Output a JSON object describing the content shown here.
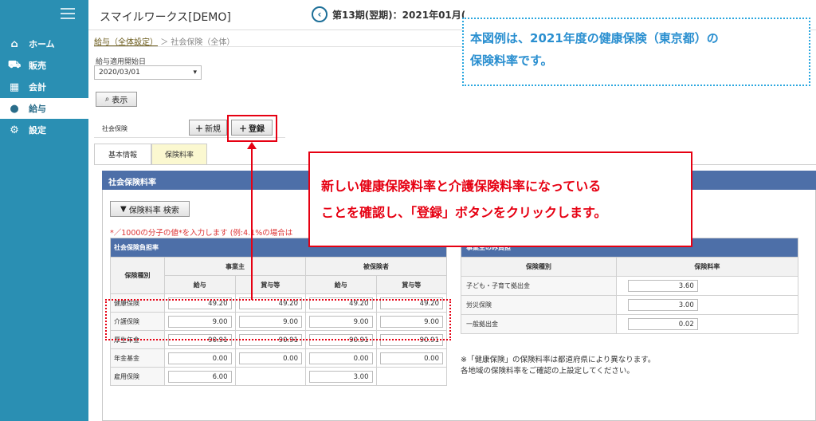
{
  "sidebar": {
    "items": [
      {
        "label": "ホーム",
        "icon": "home-icon"
      },
      {
        "label": "販売",
        "icon": "cart-icon"
      },
      {
        "label": "会計",
        "icon": "calculator-icon"
      },
      {
        "label": "給与",
        "icon": "money-bag-icon"
      },
      {
        "label": "設定",
        "icon": "gear-icon"
      }
    ],
    "active_index": 3
  },
  "header": {
    "app_title": "スマイルワークス[DEMO]",
    "period": "第13期(翌期)：2021年01月("
  },
  "breadcrumb": {
    "link": "給与（全体設定）",
    "sep": "＞",
    "current": "社会保険（全体）"
  },
  "form": {
    "start_date_label": "給与適用開始日",
    "start_date_value": "2020/03/01",
    "show_button": "表示",
    "section_label": "社会保険",
    "new_button": "新規",
    "register_button": "登録"
  },
  "tabs": [
    {
      "label": "基本情報"
    },
    {
      "label": "保険料率"
    }
  ],
  "panel": {
    "title": "社会保険料率",
    "search_button": "保険料率 検索",
    "note": "*／1000の分子の値*を入力します (例:4.1%の場合は"
  },
  "left_table": {
    "title": "社会保険負担率",
    "col_category": "保険種別",
    "group_employer": "事業主",
    "group_insured": "被保険者",
    "col_salary": "給与",
    "col_bonus": "賞与等",
    "rows": [
      {
        "label": "健康保険",
        "values": [
          "49.20",
          "49.20",
          "49.20",
          "49.20"
        ]
      },
      {
        "label": "介護保険",
        "values": [
          "9.00",
          "9.00",
          "9.00",
          "9.00"
        ]
      },
      {
        "label": "厚生年金",
        "values": [
          "90.91",
          "90.91",
          "90.91",
          "90.91"
        ]
      },
      {
        "label": "年金基金",
        "values": [
          "0.00",
          "0.00",
          "0.00",
          "0.00"
        ]
      },
      {
        "label": "雇用保険",
        "values": [
          "6.00",
          "",
          "3.00",
          ""
        ]
      }
    ]
  },
  "right_table": {
    "title": "事業主のみ負担",
    "col_category": "保険種別",
    "col_rate": "保険料率",
    "rows": [
      {
        "label": "子ども・子育て拠出金",
        "value": "3.60"
      },
      {
        "label": "労災保険",
        "value": "3.00"
      },
      {
        "label": "一般拠出金",
        "value": "0.02"
      }
    ]
  },
  "footnote": {
    "line1": "※「健康保険」の保険料率は都道府県により異なります。",
    "line2": "各地域の保険料率をご確認の上設定してください。"
  },
  "callouts": {
    "blue_line1": "本図例は、2021年度の健康保険（東京都）の",
    "blue_line2": "保険料率です。",
    "red_line1": "新しい健康保険料率と介護保険料率になっている",
    "red_line2": "ことを確認し、「登録」ボタンをクリックします。"
  },
  "colors": {
    "sidebar": "#2a8fb3",
    "table_header": "#4d6fa8",
    "highlight_red": "#e60012",
    "callout_blue": "#2aa7df"
  }
}
